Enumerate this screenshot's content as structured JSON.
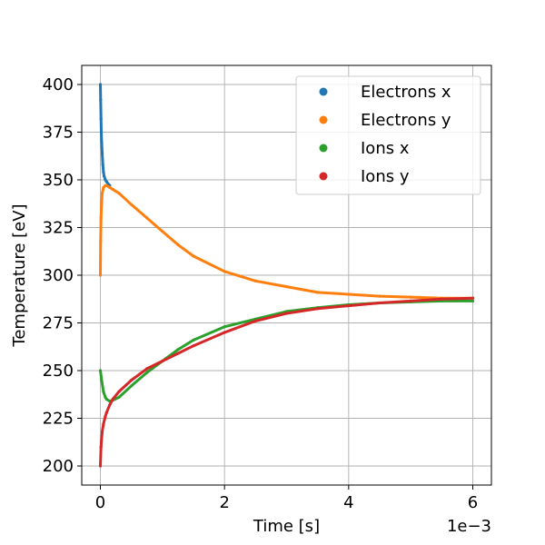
{
  "chart_data": {
    "type": "scatter",
    "xlabel": "Time [s]",
    "ylabel": "Temperature [eV]",
    "x_offset_label": "1e−3",
    "x_scale": 0.001,
    "xlim": [
      -0.3,
      6.3
    ],
    "ylim": [
      190,
      410
    ],
    "x_ticks": [
      0,
      2,
      4,
      6
    ],
    "x_tick_labels": [
      "0",
      "2",
      "4",
      "6"
    ],
    "y_ticks": [
      200,
      225,
      250,
      275,
      300,
      325,
      350,
      375,
      400
    ],
    "y_tick_labels": [
      "200",
      "225",
      "250",
      "275",
      "300",
      "325",
      "350",
      "375",
      "400"
    ],
    "grid": true,
    "legend_position": "top-right",
    "series": [
      {
        "name": "Electrons x",
        "color": "#1f77b4",
        "x": [
          0,
          0.005,
          0.01,
          0.015,
          0.02,
          0.03,
          0.04,
          0.05,
          0.06,
          0.08,
          0.1,
          0.15
        ],
        "y": [
          400,
          392,
          382,
          375,
          370,
          364,
          358,
          354,
          352,
          350,
          349,
          347
        ]
      },
      {
        "name": "Electrons y",
        "color": "#ff7f0e",
        "x": [
          0,
          0.005,
          0.01,
          0.02,
          0.03,
          0.05,
          0.08,
          0.1,
          0.15,
          0.2,
          0.3,
          0.5,
          0.75,
          1.0,
          1.25,
          1.5,
          2.0,
          2.5,
          3.0,
          3.5,
          4.0,
          4.5,
          5.0,
          5.5,
          6.0
        ],
        "y": [
          300,
          318,
          330,
          338,
          343,
          346,
          347,
          347,
          346,
          345,
          343,
          337,
          330,
          323,
          316,
          310,
          302,
          297,
          294,
          291,
          290,
          289,
          288.5,
          288,
          288
        ]
      },
      {
        "name": "Ions x",
        "color": "#2ca02c",
        "x": [
          0,
          0.02,
          0.05,
          0.08,
          0.1,
          0.15,
          0.2,
          0.3,
          0.5,
          0.75,
          1.0,
          1.25,
          1.5,
          2.0,
          2.5,
          3.0,
          3.5,
          4.0,
          4.5,
          5.0,
          5.5,
          6.0
        ],
        "y": [
          250,
          245,
          239,
          236,
          235,
          234,
          234.5,
          236,
          242,
          249,
          255,
          261,
          266,
          273,
          277,
          281,
          283,
          284.5,
          285.5,
          286,
          286.5,
          286.5
        ]
      },
      {
        "name": "Ions y",
        "color": "#d62728",
        "x": [
          0,
          0.01,
          0.03,
          0.05,
          0.08,
          0.1,
          0.15,
          0.2,
          0.3,
          0.5,
          0.75,
          1.0,
          1.25,
          1.5,
          2.0,
          2.5,
          3.0,
          3.5,
          4.0,
          4.5,
          5.0,
          5.5,
          6.0
        ],
        "y": [
          200,
          210,
          218,
          222,
          226,
          228,
          232,
          235,
          239,
          245,
          251,
          255,
          259,
          263,
          270,
          276,
          280,
          282.5,
          284,
          285.5,
          286.5,
          287.5,
          288
        ]
      }
    ]
  }
}
